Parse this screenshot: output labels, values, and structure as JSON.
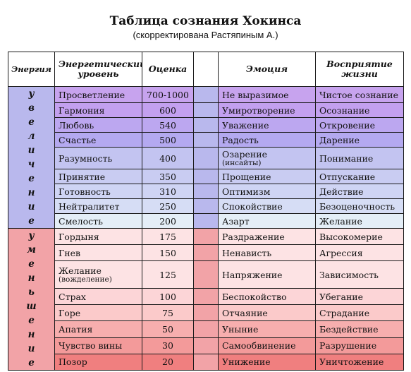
{
  "title": "Таблица сознания Хокинса",
  "subtitle": "(скорректирована Растяпиным А.)",
  "headers": {
    "energy": "Энергия",
    "level": "Энергетический уровень",
    "score": "Оценка",
    "emotion": "Эмоция",
    "perception": "Восприятие жизни"
  },
  "increase_label": [
    "у",
    "в",
    "е",
    "л",
    "и",
    "ч",
    "е",
    "н",
    "и",
    "е"
  ],
  "decrease_label": [
    "у",
    "м",
    "е",
    "н",
    "ь",
    "ш",
    "е",
    "н",
    "и",
    "е"
  ],
  "rows_up": [
    {
      "level": "Просветление",
      "score": "700-1000",
      "emotion": "Не выразимое",
      "perception": "Чистое сознание",
      "bg": "#c7a3ee"
    },
    {
      "level": "Гармония",
      "score": "600",
      "emotion": "Умиротворение",
      "perception": "Осознание",
      "bg": "#c3a0ef"
    },
    {
      "level": "Любовь",
      "score": "540",
      "emotion": "Уважение",
      "perception": "Откровение",
      "bg": "#bca7f0"
    },
    {
      "level": "Счастье",
      "score": "500",
      "emotion": "Радость",
      "perception": "Дарение",
      "bg": "#b4a9f0"
    },
    {
      "level": "Разумность",
      "score": "400",
      "emotion": "Озарение",
      "emotion_note": "(инсайты)",
      "perception": "Понимание",
      "bg": "#c3c4f1"
    },
    {
      "level": "Принятие",
      "score": "350",
      "emotion": "Прощение",
      "perception": "Отпускание",
      "bg": "#c9ccf2"
    },
    {
      "level": "Готовность",
      "score": "310",
      "emotion": "Оптимизм",
      "perception": "Действие",
      "bg": "#cfd4f4"
    },
    {
      "level": "Нейтралитет",
      "score": "250",
      "emotion": "Спокойствие",
      "perception": "Безоценочность",
      "bg": "#d6ddf5"
    },
    {
      "level": "Смелость",
      "score": "200",
      "emotion": "Азарт",
      "perception": "Желание",
      "bg": "#e4eef7"
    }
  ],
  "rows_down": [
    {
      "level": "Гордыня",
      "score": "175",
      "emotion": "Раздражение",
      "perception": "Высокомерие",
      "bg": "#fde3e4"
    },
    {
      "level": "Гнев",
      "score": "150",
      "emotion": "Ненависть",
      "perception": "Агрессия",
      "bg": "#fde3e4"
    },
    {
      "level": "Желание",
      "level_note": "(вожделение)",
      "score": "125",
      "emotion": "Напряжение",
      "perception": "Зависимость",
      "bg": "#fde3e4"
    },
    {
      "level": "Страх",
      "score": "100",
      "emotion": "Беспокойство",
      "perception": "Убегание",
      "bg": "#fcd5d7"
    },
    {
      "level": "Горе",
      "score": "75",
      "emotion": "Отчаяние",
      "perception": "Страдание",
      "bg": "#fbcaca"
    },
    {
      "level": "Апатия",
      "score": "50",
      "emotion": "Уныние",
      "perception": "Бездействие",
      "bg": "#f7aeae"
    },
    {
      "level": "Чувство вины",
      "score": "30",
      "emotion": "Самообвинение",
      "perception": "Разрушение",
      "bg": "#f39a9a"
    },
    {
      "level": "Позор",
      "score": "20",
      "emotion": "Унижение",
      "perception": "Уничтожение",
      "bg": "#f07f7f"
    }
  ]
}
